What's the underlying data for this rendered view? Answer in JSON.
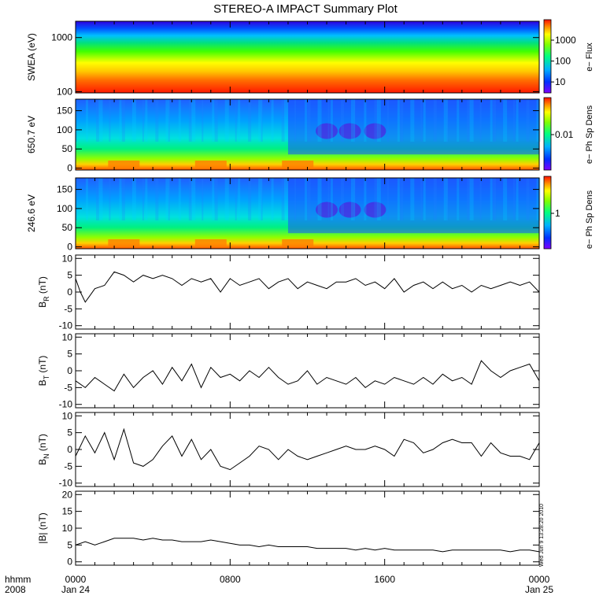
{
  "title": "STEREO-A IMPACT Summary Plot",
  "timestamp": "Wed Jun  9 13:28:20 2010",
  "time_axis": {
    "corner_labels": [
      "hhmm",
      "2008"
    ],
    "ticks": [
      {
        "hour": 0,
        "time": "0000",
        "date": "Jan 24"
      },
      {
        "hour": 8,
        "time": "0800",
        "date": ""
      },
      {
        "hour": 16,
        "time": "1600",
        "date": ""
      },
      {
        "hour": 24,
        "time": "0000",
        "date": "Jan 25"
      }
    ],
    "range_hours": [
      0,
      24
    ]
  },
  "chart_data": [
    {
      "type": "heatmap",
      "id": "swea",
      "ylabel": "SWEA (eV)",
      "yscale": "log",
      "ylim": [
        95,
        2000
      ],
      "yticks": [
        "100",
        "1000"
      ],
      "colorbar": {
        "label": "e− Flux",
        "scale": "log",
        "ticks": [
          "10",
          "100",
          "1000"
        ],
        "range": [
          3,
          8000
        ]
      },
      "description_values": {
        "low_energy_flux": 6000,
        "mid_energy_flux": 300,
        "high_energy_flux": 5
      }
    },
    {
      "type": "heatmap",
      "id": "pad650",
      "ylabel": "650.7 eV",
      "ylim": [
        -5,
        180
      ],
      "yticks": [
        "0",
        "50",
        "100",
        "150"
      ],
      "colorbar": {
        "label": "e− Ph Sp Dens",
        "scale": "log",
        "ticks": [
          "0.01"
        ],
        "range": [
          0.002,
          0.05
        ]
      }
    },
    {
      "type": "heatmap",
      "id": "pad246",
      "ylabel": "246.6 eV",
      "ylim": [
        -5,
        180
      ],
      "yticks": [
        "0",
        "50",
        "100",
        "150"
      ],
      "colorbar": {
        "label": "e− Ph Sp Dens",
        "scale": "log",
        "ticks": [
          "1"
        ],
        "range": [
          0.2,
          5
        ]
      }
    },
    {
      "type": "line",
      "id": "br",
      "ylabel": "B_R (nT)",
      "ylabel_main": "B",
      "ylabel_sub": "R",
      "ylabel_unit": "(nT)",
      "ylim": [
        -11,
        11
      ],
      "yticks": [
        -10,
        -5,
        0,
        5,
        10
      ],
      "x": [
        0,
        0.25,
        0.5,
        0.75,
        1,
        1.5,
        2,
        2.5,
        3,
        3.5,
        4,
        4.5,
        5,
        5.5,
        6,
        6.5,
        7,
        7.5,
        8,
        8.5,
        9,
        9.5,
        10,
        10.5,
        11,
        11.5,
        12,
        12.5,
        13,
        13.5,
        14,
        14.5,
        15,
        15.5,
        16,
        16.5,
        17,
        17.5,
        18,
        18.5,
        19,
        19.5,
        20,
        20.5,
        21,
        21.5,
        22,
        22.5,
        23,
        23.5,
        24
      ],
      "y": [
        4,
        0,
        -3,
        -1,
        1,
        2,
        6,
        5,
        3,
        5,
        4,
        5,
        4,
        2,
        4,
        3,
        4,
        0,
        4,
        2,
        3,
        4,
        1,
        3,
        4,
        1,
        3,
        2,
        1,
        3,
        3,
        4,
        2,
        3,
        1,
        4,
        0,
        2,
        3,
        1,
        3,
        1,
        2,
        0,
        2,
        1,
        2,
        3,
        2,
        3,
        0
      ]
    },
    {
      "type": "line",
      "id": "bt",
      "ylabel": "B_T (nT)",
      "ylabel_main": "B",
      "ylabel_sub": "T",
      "ylabel_unit": "(nT)",
      "ylim": [
        -11,
        11
      ],
      "yticks": [
        -10,
        -5,
        0,
        5,
        10
      ],
      "x": [
        0,
        0.5,
        1,
        1.5,
        2,
        2.5,
        3,
        3.5,
        4,
        4.5,
        5,
        5.5,
        6,
        6.5,
        7,
        7.5,
        8,
        8.5,
        9,
        9.5,
        10,
        10.5,
        11,
        11.5,
        12,
        12.5,
        13,
        13.5,
        14,
        14.5,
        15,
        15.5,
        16,
        16.5,
        17,
        17.5,
        18,
        18.5,
        19,
        19.5,
        20,
        20.5,
        21,
        21.5,
        22,
        22.5,
        23,
        23.5,
        24
      ],
      "y": [
        -3,
        -5,
        -2,
        -4,
        -6,
        -1,
        -5,
        -2,
        0,
        -4,
        1,
        -3,
        2,
        -5,
        1,
        -2,
        -1,
        -3,
        0,
        -2,
        1,
        -2,
        -4,
        -3,
        0,
        -4,
        -2,
        -3,
        -4,
        -2,
        -5,
        -3,
        -4,
        -2,
        -3,
        -4,
        -2,
        -4,
        -1,
        -3,
        -2,
        -4,
        3,
        0,
        -2,
        0,
        1,
        2,
        -3
      ]
    },
    {
      "type": "line",
      "id": "bn",
      "ylabel": "B_N (nT)",
      "ylabel_main": "B",
      "ylabel_sub": "N",
      "ylabel_unit": "(nT)",
      "ylim": [
        -11,
        11
      ],
      "yticks": [
        -10,
        -5,
        0,
        5,
        10
      ],
      "x": [
        0,
        0.5,
        1,
        1.5,
        2,
        2.5,
        3,
        3.5,
        4,
        4.5,
        5,
        5.5,
        6,
        6.5,
        7,
        7.5,
        8,
        8.5,
        9,
        9.5,
        10,
        10.5,
        11,
        11.5,
        12,
        12.5,
        13,
        13.5,
        14,
        14.5,
        15,
        15.5,
        16,
        16.5,
        17,
        17.5,
        18,
        18.5,
        19,
        19.5,
        20,
        20.5,
        21,
        21.5,
        22,
        22.5,
        23,
        23.5,
        24
      ],
      "y": [
        -2,
        4,
        -1,
        5,
        -3,
        6,
        -4,
        -5,
        -3,
        1,
        4,
        -2,
        3,
        -3,
        0,
        -5,
        -6,
        -4,
        -2,
        1,
        0,
        -3,
        0,
        -2,
        -3,
        -2,
        -1,
        0,
        1,
        0,
        0,
        1,
        0,
        -2,
        3,
        2,
        -1,
        0,
        2,
        3,
        2,
        2,
        -2,
        2,
        -1,
        -2,
        -2,
        -3,
        2
      ]
    },
    {
      "type": "line",
      "id": "bmag",
      "ylabel": "|B| (nT)",
      "ylabel_main": "|B|",
      "ylabel_sub": "",
      "ylabel_unit": "(nT)",
      "ylim": [
        -1,
        21
      ],
      "yticks": [
        0,
        5,
        10,
        15,
        20
      ],
      "x": [
        0,
        0.5,
        1,
        1.5,
        2,
        2.5,
        3,
        3.5,
        4,
        4.5,
        5,
        5.5,
        6,
        6.5,
        7,
        7.5,
        8,
        8.5,
        9,
        9.5,
        10,
        10.5,
        11,
        11.5,
        12,
        12.5,
        13,
        13.5,
        14,
        14.5,
        15,
        15.5,
        16,
        16.5,
        17,
        17.5,
        18,
        18.5,
        19,
        19.5,
        20,
        20.5,
        21,
        21.5,
        22,
        22.5,
        23,
        23.5,
        24
      ],
      "y": [
        5,
        6,
        5,
        6,
        7,
        7,
        7,
        6.5,
        7,
        6.5,
        6.5,
        6,
        6,
        6,
        6.5,
        6,
        5.5,
        5,
        5,
        4.5,
        5,
        4.5,
        4.5,
        4.5,
        4.5,
        4,
        4,
        4,
        4,
        3.5,
        4,
        3.5,
        4,
        3.5,
        3.5,
        3.5,
        3.5,
        3.5,
        3,
        3.5,
        3.5,
        3.5,
        3.5,
        3.5,
        3.5,
        3,
        3.5,
        3.5,
        3
      ]
    }
  ]
}
